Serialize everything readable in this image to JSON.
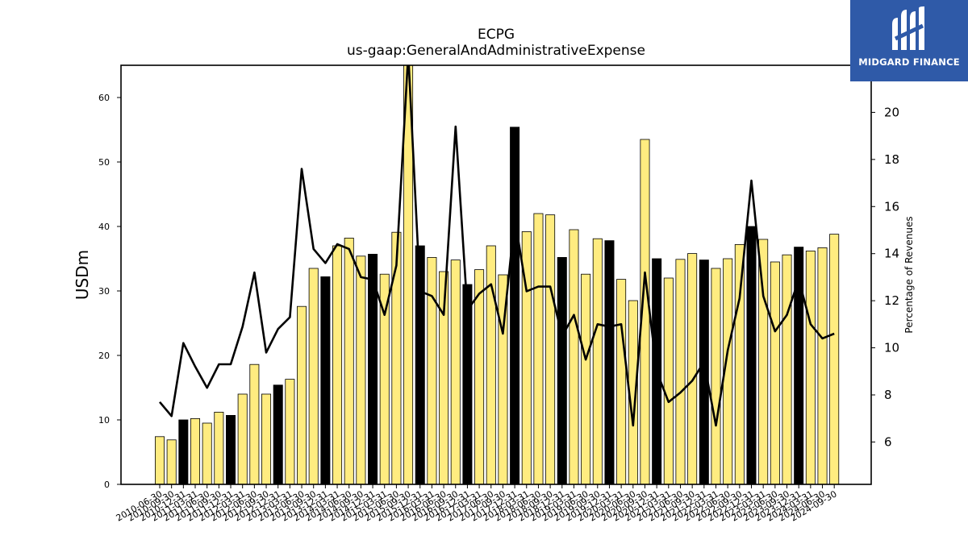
{
  "chart_data": {
    "type": "bar",
    "title": "ECPG",
    "subtitle": "us-gaap:GeneralAndAdministrativeExpense",
    "ylabel": "USDm",
    "y2label": "Percentage of Revenues",
    "ylim": [
      0,
      65
    ],
    "y2lim": [
      4.2,
      22.0
    ],
    "yticks": [
      0,
      10,
      20,
      30,
      40,
      50,
      60
    ],
    "y2ticks": [
      6,
      8,
      10,
      12,
      14,
      16,
      18,
      20
    ],
    "categories": [
      "2010-06-30",
      "2010-09-30",
      "2010-12-31",
      "2011-03-31",
      "2011-06-30",
      "2011-09-30",
      "2011-12-31",
      "2012-03-31",
      "2012-06-30",
      "2012-09-30",
      "2012-12-31",
      "2013-03-31",
      "2013-06-30",
      "2013-09-30",
      "2013-12-31",
      "2014-03-31",
      "2014-06-30",
      "2014-09-30",
      "2014-12-31",
      "2015-03-31",
      "2015-06-30",
      "2015-09-30",
      "2015-12-31",
      "2016-03-31",
      "2016-06-30",
      "2016-09-30",
      "2016-12-31",
      "2017-03-31",
      "2017-06-30",
      "2017-09-30",
      "2017-12-31",
      "2018-03-31",
      "2018-06-30",
      "2018-09-30",
      "2018-12-31",
      "2019-03-31",
      "2019-06-30",
      "2019-09-30",
      "2019-12-31",
      "2020-03-31",
      "2020-06-30",
      "2020-09-30",
      "2020-12-31",
      "2021-03-31",
      "2021-06-30",
      "2021-09-30",
      "2021-12-31",
      "2022-03-31",
      "2022-06-30",
      "2022-09-30",
      "2022-12-31",
      "2023-03-31",
      "2023-06-30",
      "2023-09-30",
      "2023-12-31",
      "2024-03-31",
      "2024-06-30",
      "2024-09-30"
    ],
    "series": [
      {
        "type": "bar",
        "values": [
          7.4,
          6.9,
          10.0,
          10.2,
          9.5,
          11.2,
          10.7,
          14.0,
          18.6,
          14.0,
          15.4,
          16.3,
          27.6,
          33.5,
          32.2,
          37.0,
          38.2,
          35.4,
          35.7,
          32.6,
          39.1,
          66.0,
          37.0,
          35.2,
          33.0,
          34.8,
          31.0,
          33.3,
          37.0,
          32.5,
          55.4,
          39.2,
          42.0,
          41.8,
          35.2,
          39.5,
          32.6,
          38.1,
          37.8,
          31.8,
          28.5,
          53.5,
          35.0,
          32.0,
          34.9,
          35.8,
          34.8,
          33.5,
          35.0,
          37.2,
          40.0,
          38.0,
          34.5,
          35.6,
          36.8,
          36.2,
          36.7,
          38.8
        ],
        "highlight_color": "#000000",
        "base_color": "#ffec80"
      },
      {
        "type": "line",
        "axis": "right",
        "values": [
          7.7,
          7.1,
          10.2,
          9.2,
          8.3,
          9.3,
          9.3,
          10.9,
          13.2,
          9.8,
          10.8,
          11.3,
          17.6,
          14.2,
          13.6,
          14.4,
          14.2,
          13.0,
          12.9,
          11.4,
          13.5,
          22.5,
          12.4,
          12.2,
          11.4,
          19.4,
          11.6,
          12.3,
          12.7,
          10.6,
          15.5,
          12.4,
          12.6,
          12.6,
          10.5,
          11.4,
          9.5,
          11.0,
          10.9,
          11.0,
          6.7,
          13.2,
          9.0,
          7.7,
          8.1,
          8.6,
          9.4,
          6.7,
          9.9,
          12.1,
          17.1,
          12.2,
          10.7,
          11.4,
          12.9,
          11.0,
          10.4,
          10.6
        ],
        "color": "#000000"
      }
    ],
    "highlight_indices": [
      2,
      6,
      10,
      14,
      18,
      22,
      26,
      30,
      34,
      38,
      42,
      46,
      50,
      54
    ],
    "grid": false
  },
  "logo": {
    "name": "MIDGARD FINANCE",
    "icon": "midgard-logo-icon"
  }
}
